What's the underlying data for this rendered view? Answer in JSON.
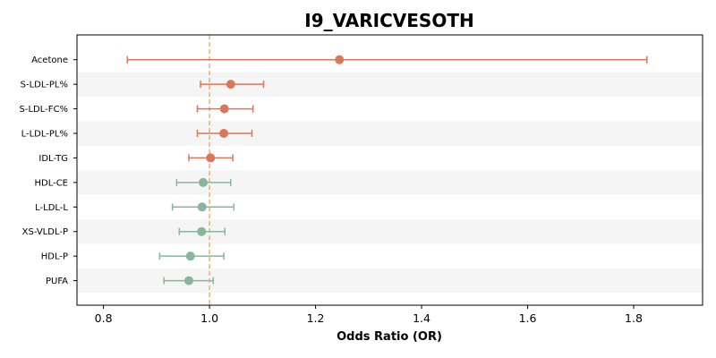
{
  "chart_data": {
    "type": "forest",
    "title": "I9_VARICVESOTH",
    "xlabel": "Odds Ratio (OR)",
    "xlim": [
      0.75,
      1.93
    ],
    "xticks": [
      0.8,
      1.0,
      1.2,
      1.4,
      1.6,
      1.8
    ],
    "xtick_labels": [
      "0.8",
      "1.0",
      "1.2",
      "1.4",
      "1.6",
      "1.8"
    ],
    "reference_line": 1.0,
    "reference_color": "#f0b070",
    "colors": {
      "positive": "#d9775b",
      "negative": "#86b79c"
    },
    "grid": false,
    "rows": [
      {
        "label": "Acetone",
        "or": 1.245,
        "lo": 0.845,
        "hi": 1.825,
        "group": "positive"
      },
      {
        "label": "S-LDL-PL%",
        "or": 1.04,
        "lo": 0.983,
        "hi": 1.102,
        "group": "positive"
      },
      {
        "label": "S-LDL-FC%",
        "or": 1.028,
        "lo": 0.977,
        "hi": 1.082,
        "group": "positive"
      },
      {
        "label": "L-LDL-PL%",
        "or": 1.027,
        "lo": 0.977,
        "hi": 1.08,
        "group": "positive"
      },
      {
        "label": "IDL-TG",
        "or": 1.002,
        "lo": 0.961,
        "hi": 1.044,
        "group": "positive"
      },
      {
        "label": "HDL-CE",
        "or": 0.988,
        "lo": 0.938,
        "hi": 1.04,
        "group": "negative"
      },
      {
        "label": "L-LDL-L",
        "or": 0.986,
        "lo": 0.93,
        "hi": 1.046,
        "group": "negative"
      },
      {
        "label": "XS-VLDL-P",
        "or": 0.985,
        "lo": 0.943,
        "hi": 1.029,
        "group": "negative"
      },
      {
        "label": "HDL-P",
        "or": 0.964,
        "lo": 0.906,
        "hi": 1.027,
        "group": "negative"
      },
      {
        "label": "PUFA",
        "or": 0.961,
        "lo": 0.914,
        "hi": 1.007,
        "group": "negative"
      }
    ]
  }
}
